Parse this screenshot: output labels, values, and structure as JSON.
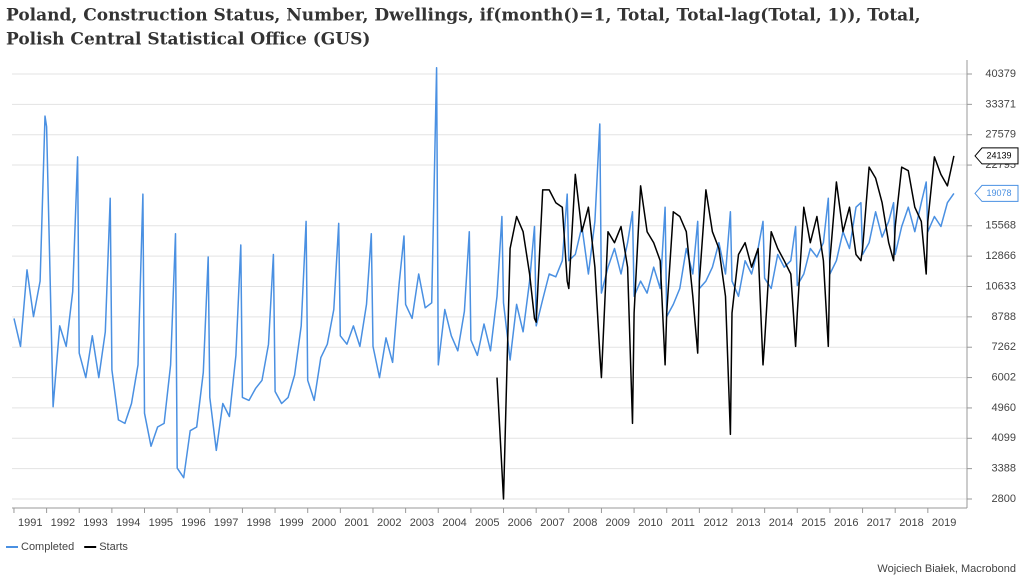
{
  "chart_data": {
    "type": "line",
    "title": "Poland, Construction Status, Number, Dwellings, if(month()=1, Total, Total-lag(Total, 1)), Total,",
    "subtitle": "Polish Central Statistical Office (GUS)",
    "source": "Wojciech Białek, Macrobond",
    "yscale": "log",
    "grid": true,
    "legend": "bottom-left",
    "xlim": [
      1990.94,
      2020.2
    ],
    "ylim": [
      2646,
      44090
    ],
    "yticks": [
      2800,
      3388,
      4099,
      4960,
      6002,
      7262,
      8788,
      10633,
      12866,
      15568,
      22795,
      27579,
      33371,
      40379
    ],
    "xticks": [
      1991,
      1992,
      1993,
      1994,
      1995,
      1996,
      1997,
      1998,
      1999,
      2000,
      2001,
      2002,
      2003,
      2004,
      2005,
      2006,
      2007,
      2008,
      2009,
      2010,
      2011,
      2012,
      2013,
      2014,
      2015,
      2016,
      2017,
      2018,
      2019
    ],
    "series": [
      {
        "name": "Completed",
        "color": "#4a90e2",
        "x": [
          1991,
          1991.2,
          1991.4,
          1991.6,
          1991.8,
          1991.95,
          1992,
          1992.2,
          1992.4,
          1992.6,
          1992.8,
          1992.95,
          1993,
          1993.2,
          1993.4,
          1993.6,
          1993.8,
          1993.95,
          1994,
          1994.2,
          1994.4,
          1994.6,
          1994.8,
          1994.95,
          1995,
          1995.2,
          1995.4,
          1995.6,
          1995.8,
          1995.95,
          1996,
          1996.2,
          1996.4,
          1996.6,
          1996.8,
          1996.95,
          1997,
          1997.2,
          1997.4,
          1997.6,
          1997.8,
          1997.95,
          1998,
          1998.2,
          1998.4,
          1998.6,
          1998.8,
          1998.95,
          1999,
          1999.2,
          1999.4,
          1999.6,
          1999.8,
          1999.95,
          2000,
          2000.2,
          2000.4,
          2000.6,
          2000.8,
          2000.95,
          2001,
          2001.2,
          2001.4,
          2001.6,
          2001.8,
          2001.95,
          2002,
          2002.2,
          2002.4,
          2002.6,
          2002.8,
          2002.95,
          2003,
          2003.2,
          2003.4,
          2003.6,
          2003.8,
          2003.95,
          2004,
          2004.2,
          2004.4,
          2004.6,
          2004.8,
          2004.95,
          2005,
          2005.2,
          2005.4,
          2005.6,
          2005.8,
          2005.95,
          2006,
          2006.2,
          2006.4,
          2006.6,
          2006.8,
          2006.95,
          2007,
          2007.2,
          2007.4,
          2007.6,
          2007.8,
          2007.95,
          2008,
          2008.2,
          2008.4,
          2008.6,
          2008.8,
          2008.95,
          2009,
          2009.2,
          2009.4,
          2009.6,
          2009.8,
          2009.95,
          2010,
          2010.2,
          2010.4,
          2010.6,
          2010.8,
          2010.95,
          2011,
          2011.2,
          2011.4,
          2011.6,
          2011.8,
          2011.95,
          2012,
          2012.2,
          2012.4,
          2012.6,
          2012.8,
          2012.95,
          2013,
          2013.2,
          2013.4,
          2013.6,
          2013.8,
          2013.95,
          2014,
          2014.2,
          2014.4,
          2014.6,
          2014.8,
          2014.95,
          2015,
          2015.2,
          2015.4,
          2015.6,
          2015.8,
          2015.95,
          2016,
          2016.2,
          2016.4,
          2016.6,
          2016.8,
          2016.95,
          2017,
          2017.2,
          2017.4,
          2017.6,
          2017.8,
          2017.95,
          2018,
          2018.2,
          2018.4,
          2018.6,
          2018.8,
          2018.95,
          2019,
          2019.2,
          2019.4,
          2019.6,
          2019.8
        ],
        "values": [
          8700,
          7300,
          11800,
          8800,
          11000,
          31000,
          29000,
          5000,
          8300,
          7300,
          10300,
          24000,
          7000,
          6000,
          7800,
          6000,
          8000,
          18500,
          6300,
          4600,
          4500,
          5100,
          6500,
          19000,
          4800,
          3900,
          4400,
          4500,
          6500,
          14800,
          3400,
          3200,
          4300,
          4400,
          6200,
          12800,
          5300,
          3800,
          5100,
          4700,
          6900,
          13800,
          5300,
          5200,
          5600,
          5900,
          7400,
          13000,
          5500,
          5100,
          5300,
          6100,
          8300,
          16000,
          5900,
          5200,
          6800,
          7400,
          9200,
          15800,
          7800,
          7400,
          8300,
          7300,
          9500,
          14800,
          7300,
          6000,
          7700,
          6600,
          10800,
          14600,
          9500,
          8700,
          11500,
          9300,
          9600,
          42000,
          6500,
          9200,
          7800,
          7100,
          9100,
          15000,
          7600,
          6900,
          8400,
          7100,
          10000,
          16500,
          9600,
          6700,
          9500,
          8000,
          11000,
          15500,
          8300,
          9800,
          11500,
          11300,
          12500,
          19000,
          12500,
          13000,
          15500,
          11500,
          16000,
          29500,
          10200,
          12000,
          13500,
          11500,
          14000,
          17000,
          10000,
          11000,
          10200,
          12000,
          10500,
          17500,
          8800,
          9500,
          10500,
          13500,
          11500,
          16000,
          10500,
          11000,
          12000,
          14000,
          11500,
          17000,
          11000,
          10000,
          12500,
          11500,
          13500,
          16000,
          11200,
          10500,
          13000,
          12000,
          12500,
          15500,
          10700,
          11500,
          13500,
          12800,
          14000,
          18500,
          11500,
          12500,
          15000,
          13500,
          17500,
          18000,
          13000,
          14000,
          17000,
          14500,
          16000,
          18000,
          13000,
          15500,
          17500,
          15000,
          18000,
          20500,
          15000,
          16500,
          15500,
          18000,
          19078
        ]
      },
      {
        "name": "Starts",
        "color": "#000000",
        "x": [
          2005.8,
          2006,
          2006.2,
          2006.4,
          2006.6,
          2006.8,
          2006.95,
          2007,
          2007.2,
          2007.4,
          2007.6,
          2007.8,
          2007.95,
          2008,
          2008.2,
          2008.4,
          2008.6,
          2008.8,
          2008.95,
          2009,
          2009.2,
          2009.4,
          2009.6,
          2009.8,
          2009.95,
          2010,
          2010.2,
          2010.4,
          2010.6,
          2010.8,
          2010.95,
          2011,
          2011.2,
          2011.4,
          2011.6,
          2011.8,
          2011.95,
          2012,
          2012.2,
          2012.4,
          2012.6,
          2012.8,
          2012.95,
          2013,
          2013.2,
          2013.4,
          2013.6,
          2013.8,
          2013.95,
          2014,
          2014.2,
          2014.4,
          2014.6,
          2014.8,
          2014.95,
          2015,
          2015.2,
          2015.4,
          2015.6,
          2015.8,
          2015.95,
          2016,
          2016.2,
          2016.4,
          2016.6,
          2016.8,
          2016.95,
          2017,
          2017.2,
          2017.4,
          2017.6,
          2017.8,
          2017.95,
          2018,
          2018.2,
          2018.4,
          2018.6,
          2018.8,
          2018.95,
          2019,
          2019.2,
          2019.4,
          2019.6,
          2019.8
        ],
        "values": [
          6000,
          2800,
          13500,
          16500,
          15000,
          11500,
          8700,
          8500,
          19500,
          19500,
          18000,
          17500,
          11000,
          10500,
          21500,
          15000,
          17500,
          12000,
          7000,
          6000,
          15000,
          14000,
          15500,
          12000,
          4500,
          9000,
          20000,
          15000,
          14000,
          12500,
          6500,
          9000,
          17000,
          16500,
          15000,
          10000,
          7000,
          11000,
          19500,
          15000,
          13500,
          10000,
          4200,
          9000,
          13000,
          14000,
          12000,
          13500,
          6500,
          7500,
          15000,
          13500,
          12500,
          11500,
          7300,
          9000,
          17500,
          14000,
          16500,
          12500,
          7300,
          12500,
          20500,
          15000,
          17500,
          13000,
          12500,
          13500,
          22500,
          21000,
          18000,
          14000,
          12500,
          15500,
          22500,
          22000,
          17500,
          16000,
          11500,
          16000,
          24000,
          21500,
          20000,
          24139
        ]
      }
    ]
  }
}
